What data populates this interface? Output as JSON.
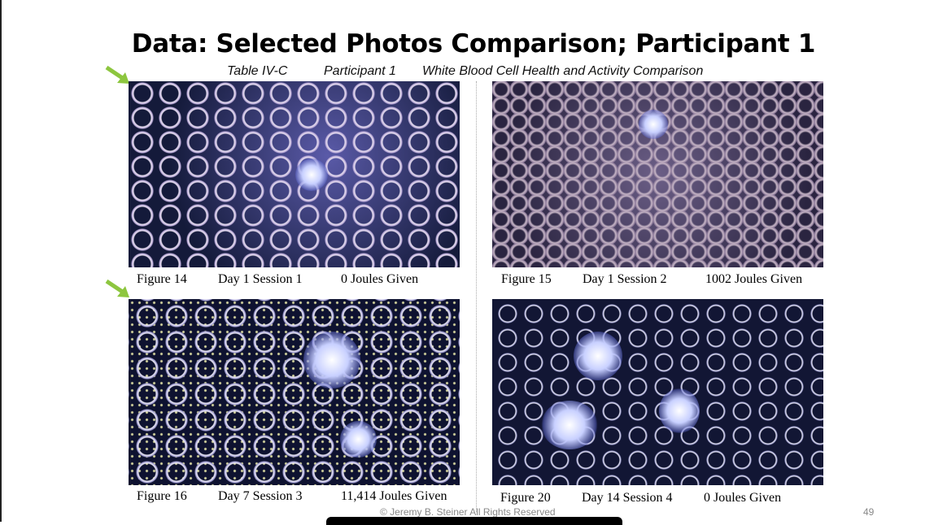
{
  "title": "Data: Selected Photos Comparison; Participant 1",
  "subtitle": {
    "table": "Table IV-C",
    "participant": "Participant 1",
    "description": "White Blood Cell Health and Activity Comparison"
  },
  "figures": [
    {
      "figure": "Figure 14",
      "session": "Day 1 Session 1",
      "joules": "0 Joules Given",
      "highlighted": true
    },
    {
      "figure": "Figure 15",
      "session": "Day 1 Session 2",
      "joules": "1002 Joules Given",
      "highlighted": false
    },
    {
      "figure": "Figure 16",
      "session": "Day 7 Session 3",
      "joules": "11,414 Joules Given",
      "highlighted": true
    },
    {
      "figure": "Figure 20",
      "session": "Day 14 Session 4",
      "joules": "0 Joules Given",
      "highlighted": false
    }
  ],
  "footer": "© Jeremy B. Steiner All Rights Reserved",
  "page_number": "49",
  "colors": {
    "arrow": "#8dc63f"
  }
}
